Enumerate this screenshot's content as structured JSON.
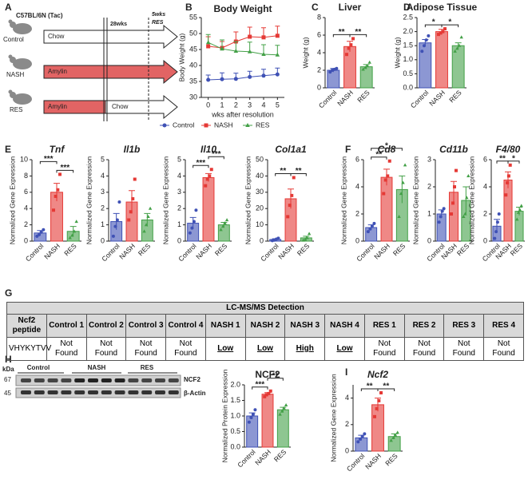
{
  "panel_labels": [
    "A",
    "B",
    "C",
    "D",
    "E",
    "F",
    "G",
    "H",
    "I"
  ],
  "diagram": {
    "strain": "C57BL/6N (Tac)",
    "groups": [
      "Control",
      "NASH",
      "RES"
    ],
    "diets": [
      "Chow",
      "Amylin",
      "Amylin",
      "Chow"
    ],
    "timepoint": "28wks",
    "resolution": [
      "5wks",
      "RES"
    ]
  },
  "table": {
    "title": "LC-MS/MS Detection",
    "header": [
      "Ncf2 peptide",
      "Control 1",
      "Control 2",
      "Control 3",
      "Control 4",
      "NASH 1",
      "NASH 2",
      "NASH 3",
      "NASH 4",
      "RES 1",
      "RES 2",
      "RES 3",
      "RES 4"
    ],
    "rows": [
      [
        {
          "text": "VHYKYTVV"
        },
        {
          "text": "Not Found"
        },
        {
          "text": "Not Found"
        },
        {
          "text": "Not Found"
        },
        {
          "text": "Not Found"
        },
        {
          "text": "Low",
          "underline": true
        },
        {
          "text": "Low",
          "underline": true
        },
        {
          "text": "High",
          "underline": true
        },
        {
          "text": "Low",
          "underline": true
        },
        {
          "text": "Not Found"
        },
        {
          "text": "Not Found"
        },
        {
          "text": "Not Found"
        },
        {
          "text": "Not Found"
        }
      ]
    ]
  },
  "blot": {
    "unit": "kDa",
    "markers": [
      67,
      45
    ],
    "groups": [
      "Control",
      "NASH",
      "RES"
    ],
    "bands": [
      "NCF2",
      "β-Actin"
    ]
  },
  "chart_data": [
    {
      "type": "line",
      "title": "Body Weight",
      "xlabel": "wks after resolution",
      "ylabel": "Body Weight (g)",
      "x": [
        0,
        1,
        2,
        3,
        4,
        5
      ],
      "xlim": [
        -0.5,
        5.5
      ],
      "xticks": [
        0,
        1,
        2,
        3,
        4,
        5
      ],
      "ylim": [
        30,
        55
      ],
      "yticks": [
        30,
        35,
        40,
        45,
        50,
        55
      ],
      "legend": "bottom",
      "series": [
        {
          "name": "Control",
          "color": "#3f51b5",
          "marker": "circle",
          "values": [
            35.5,
            35.7,
            35.8,
            36.4,
            36.8,
            37.2
          ],
          "errors": [
            1.5,
            2,
            1.8,
            1.8,
            2,
            2
          ]
        },
        {
          "name": "NASH",
          "color": "#e53935",
          "marker": "square",
          "values": [
            46,
            45.5,
            47.5,
            49,
            48.8,
            49.3
          ],
          "errors": [
            3,
            2,
            3,
            3,
            3,
            3
          ]
        },
        {
          "name": "RES",
          "color": "#43a047",
          "marker": "triangle",
          "values": [
            47.2,
            45.2,
            44.5,
            44.3,
            43.5,
            43.3
          ],
          "errors": [
            2.5,
            2.8,
            3,
            3,
            3,
            3
          ]
        }
      ]
    },
    {
      "type": "bar",
      "title": "Liver",
      "ylabel": "Weight (g)",
      "categories": [
        "Control",
        "NASH",
        "RES"
      ],
      "colors": [
        "#3f51b5",
        "#e53935",
        "#43a047"
      ],
      "markers": [
        "circle",
        "square",
        "triangle"
      ],
      "values": [
        2.0,
        4.7,
        2.4
      ],
      "errors": [
        0.2,
        0.6,
        0.25
      ],
      "points": [
        [
          1.8,
          2.0,
          2.1,
          2.2
        ],
        [
          3.8,
          4.5,
          4.9,
          5.6
        ],
        [
          2.1,
          2.3,
          2.5,
          2.9
        ]
      ],
      "ylim": [
        0,
        8
      ],
      "yticks": [
        0,
        2,
        4,
        6,
        8
      ],
      "annotations": [
        "**",
        "**"
      ]
    },
    {
      "type": "bar",
      "title": "Adipose Tissue",
      "ylabel": "Weight (g)",
      "categories": [
        "Control",
        "NASH",
        "RES"
      ],
      "colors": [
        "#3f51b5",
        "#e53935",
        "#43a047"
      ],
      "markers": [
        "circle",
        "square",
        "triangle"
      ],
      "values": [
        1.6,
        2.0,
        1.5
      ],
      "errors": [
        0.12,
        0.08,
        0.1
      ],
      "points": [
        [
          1.3,
          1.5,
          1.7,
          1.85
        ],
        [
          1.9,
          1.95,
          2.0,
          2.1
        ],
        [
          1.3,
          1.4,
          1.5,
          1.8
        ]
      ],
      "ylim": [
        0,
        2.5
      ],
      "yticks": [
        {
          "value": 0,
          "label": "0.0"
        },
        0.5,
        {
          "value": 1,
          "label": "1.0"
        },
        1.5,
        {
          "value": 2,
          "label": "2.0"
        },
        2.5
      ],
      "annotations": [
        "*",
        "*"
      ]
    },
    {
      "type": "bar",
      "title": "Tnf",
      "title_italic": true,
      "ylabel": "Normalized Gene Expression",
      "categories": [
        "Control",
        "NASH",
        "RES"
      ],
      "colors": [
        "#3f51b5",
        "#e53935",
        "#43a047"
      ],
      "markers": [
        "circle",
        "square",
        "triangle"
      ],
      "values": [
        1.0,
        6.0,
        1.2
      ],
      "errors": [
        0.3,
        1.1,
        0.6
      ],
      "points": [
        [
          0.6,
          0.8,
          1.1,
          1.4
        ],
        [
          3.8,
          5.5,
          6.3,
          8.2
        ],
        [
          0.4,
          0.7,
          1.2,
          2.4
        ]
      ],
      "ylim": [
        0,
        10
      ],
      "yticks": [
        0,
        2,
        4,
        6,
        8,
        10
      ],
      "annotations": [
        "***",
        "***"
      ]
    },
    {
      "type": "bar",
      "title": "Il1b",
      "title_italic": true,
      "ylabel": "Normalized Gene Expression",
      "categories": [
        "Control",
        "NASH",
        "RES"
      ],
      "colors": [
        "#3f51b5",
        "#e53935",
        "#43a047"
      ],
      "markers": [
        "circle",
        "square",
        "triangle"
      ],
      "values": [
        1.2,
        2.4,
        1.3
      ],
      "errors": [
        0.5,
        0.7,
        0.4
      ],
      "points": [
        [
          0.3,
          0.9,
          1.3,
          2.4
        ],
        [
          1.3,
          1.8,
          2.6,
          3.8
        ],
        [
          0.6,
          1.0,
          1.5,
          2.0
        ]
      ],
      "ylim": [
        0,
        5
      ],
      "yticks": [
        0,
        1,
        2,
        3,
        4,
        5
      ]
    },
    {
      "type": "bar",
      "title": "Il10",
      "title_italic": true,
      "ylabel": "Normalized Gene Expression",
      "categories": [
        "Control",
        "NASH",
        "RES"
      ],
      "colors": [
        "#3f51b5",
        "#e53935",
        "#43a047"
      ],
      "markers": [
        "circle",
        "square",
        "triangle"
      ],
      "values": [
        1.1,
        3.9,
        1.0
      ],
      "errors": [
        0.35,
        0.25,
        0.15
      ],
      "points": [
        [
          0.5,
          0.8,
          1.2,
          1.9
        ],
        [
          3.4,
          3.8,
          4.0,
          4.4
        ],
        [
          0.7,
          0.9,
          1.1,
          1.3
        ]
      ],
      "ylim": [
        0,
        5
      ],
      "yticks": [
        0,
        1,
        2,
        3,
        4,
        5
      ],
      "annotations": [
        "***",
        "***"
      ]
    },
    {
      "type": "bar",
      "title": "Col1a1",
      "title_italic": true,
      "ylabel": "Normalized Gene Expression",
      "categories": [
        "Control",
        "NASH",
        "RES"
      ],
      "colors": [
        "#3f51b5",
        "#e53935",
        "#43a047"
      ],
      "markers": [
        "circle",
        "square",
        "triangle"
      ],
      "values": [
        1.0,
        26,
        2.0
      ],
      "errors": [
        0.5,
        6,
        1.0
      ],
      "points": [
        [
          0.3,
          0.6,
          1.2,
          1.8
        ],
        [
          15,
          22,
          28,
          39
        ],
        [
          0.5,
          1.0,
          2.0,
          4.5
        ]
      ],
      "ylim": [
        0,
        50
      ],
      "yticks": [
        0,
        10,
        20,
        30,
        40,
        50
      ],
      "annotations": [
        "**",
        "**"
      ]
    },
    {
      "type": "bar",
      "title": "Cd8",
      "title_italic": true,
      "ylabel": "Normalized Gene Expression",
      "categories": [
        "Control",
        "NASH",
        "RES"
      ],
      "colors": [
        "#3f51b5",
        "#e53935",
        "#43a047"
      ],
      "markers": [
        "circle",
        "square",
        "triangle"
      ],
      "values": [
        1.0,
        4.7,
        3.8
      ],
      "errors": [
        0.2,
        0.6,
        1.0
      ],
      "points": [
        [
          0.7,
          0.9,
          1.1,
          1.3
        ],
        [
          3.5,
          4.5,
          4.8,
          5.9
        ],
        [
          1.8,
          3.5,
          4.3,
          5.6
        ]
      ],
      "ylim": [
        0,
        6
      ],
      "yticks": [
        0,
        2,
        4,
        6
      ],
      "annotations": [
        "**",
        "*"
      ]
    },
    {
      "type": "bar",
      "title": "Cd11b",
      "title_italic": true,
      "ylabel": "Normalized Gene Expression",
      "categories": [
        "Control",
        "NASH",
        "RES"
      ],
      "colors": [
        "#3f51b5",
        "#e53935",
        "#43a047"
      ],
      "markers": [
        "circle",
        "square",
        "triangle"
      ],
      "values": [
        1.0,
        1.8,
        1.5
      ],
      "errors": [
        0.15,
        0.4,
        0.5
      ],
      "points": [
        [
          0.7,
          0.9,
          1.1,
          1.2
        ],
        [
          1.0,
          1.4,
          2.0,
          2.6
        ],
        [
          0.9,
          1.0,
          1.6,
          2.4
        ]
      ],
      "ylim": [
        0,
        3
      ],
      "yticks": [
        0,
        1,
        2,
        3
      ]
    },
    {
      "type": "bar",
      "title": "F4/80",
      "title_italic": true,
      "ylabel": "Normalized Gene Expression",
      "categories": [
        "Control",
        "NASH",
        "RES"
      ],
      "colors": [
        "#3f51b5",
        "#e53935",
        "#43a047"
      ],
      "markers": [
        "circle",
        "square",
        "triangle"
      ],
      "values": [
        1.1,
        4.5,
        2.2
      ],
      "errors": [
        0.5,
        0.6,
        0.3
      ],
      "points": [
        [
          0.2,
          0.7,
          1.4,
          2.0
        ],
        [
          3.4,
          4.3,
          4.8,
          5.6
        ],
        [
          1.6,
          2.1,
          2.3,
          2.6
        ]
      ],
      "ylim": [
        0,
        6
      ],
      "yticks": [
        0,
        2,
        4,
        6
      ],
      "annotations": [
        "**",
        "*"
      ]
    },
    {
      "type": "bar",
      "title": "NCF2",
      "ylabel": "Normalized Protein Expression",
      "categories": [
        "Control",
        "NASH",
        "RES"
      ],
      "colors": [
        "#3f51b5",
        "#e53935",
        "#43a047"
      ],
      "markers": [
        "circle",
        "square",
        "triangle"
      ],
      "values": [
        1.0,
        1.7,
        1.2
      ],
      "errors": [
        0.1,
        0.05,
        0.08
      ],
      "points": [
        [
          0.8,
          0.95,
          1.05,
          1.2
        ],
        [
          1.62,
          1.68,
          1.72,
          1.8
        ],
        [
          1.05,
          1.15,
          1.25,
          1.35
        ]
      ],
      "ylim": [
        0,
        2
      ],
      "yticks": [
        {
          "value": 0,
          "label": "0.0"
        },
        0.5,
        {
          "value": 1,
          "label": "1.0"
        },
        1.5,
        {
          "value": 2,
          "label": "2.0"
        }
      ],
      "annotations": [
        "***",
        "**"
      ]
    },
    {
      "type": "bar",
      "title": "Ncf2",
      "title_italic": true,
      "ylabel": "Normalized Gene Expression",
      "categories": [
        "Control",
        "NASH",
        "RES"
      ],
      "colors": [
        "#3f51b5",
        "#e53935",
        "#43a047"
      ],
      "markers": [
        "circle",
        "square",
        "triangle"
      ],
      "values": [
        1.0,
        3.5,
        1.1
      ],
      "errors": [
        0.2,
        0.5,
        0.2
      ],
      "points": [
        [
          0.7,
          0.9,
          1.1,
          1.3
        ],
        [
          2.6,
          3.2,
          3.8,
          4.4
        ],
        [
          0.8,
          1.0,
          1.2,
          1.4
        ]
      ],
      "ylim": [
        0,
        5
      ],
      "yticks": [
        0,
        2,
        4
      ],
      "annotations": [
        "**",
        "**"
      ]
    }
  ]
}
